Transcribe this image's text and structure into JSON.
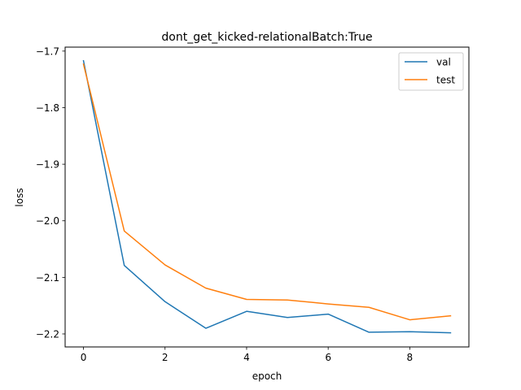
{
  "chart_data": {
    "type": "line",
    "title": "dont_get_kicked-relationalBatch:True",
    "xlabel": "epoch",
    "ylabel": "loss",
    "x": [
      0,
      1,
      2,
      3,
      4,
      5,
      6,
      7,
      8,
      9
    ],
    "xlim": [
      -0.45,
      9.45
    ],
    "ylim": [
      -2.223,
      -1.693
    ],
    "xticks": [
      0,
      2,
      4,
      6,
      8
    ],
    "yticks": [
      -1.7,
      -1.8,
      -1.9,
      -2.0,
      -2.1,
      -2.2
    ],
    "xtick_labels": [
      "0",
      "2",
      "4",
      "6",
      "8"
    ],
    "ytick_labels": [
      "−1.7",
      "−1.8",
      "−1.9",
      "−2.0",
      "−2.1",
      "−2.2"
    ],
    "grid": false,
    "legend_position": "upper right",
    "series": [
      {
        "name": "val",
        "color": "#1f77b4",
        "values": [
          -1.717,
          -2.079,
          -2.143,
          -2.19,
          -2.16,
          -2.171,
          -2.165,
          -2.197,
          -2.196,
          -2.198
        ]
      },
      {
        "name": "test",
        "color": "#ff7f0e",
        "values": [
          -1.723,
          -2.018,
          -2.078,
          -2.119,
          -2.139,
          -2.14,
          -2.147,
          -2.153,
          -2.175,
          -2.168
        ]
      }
    ]
  }
}
